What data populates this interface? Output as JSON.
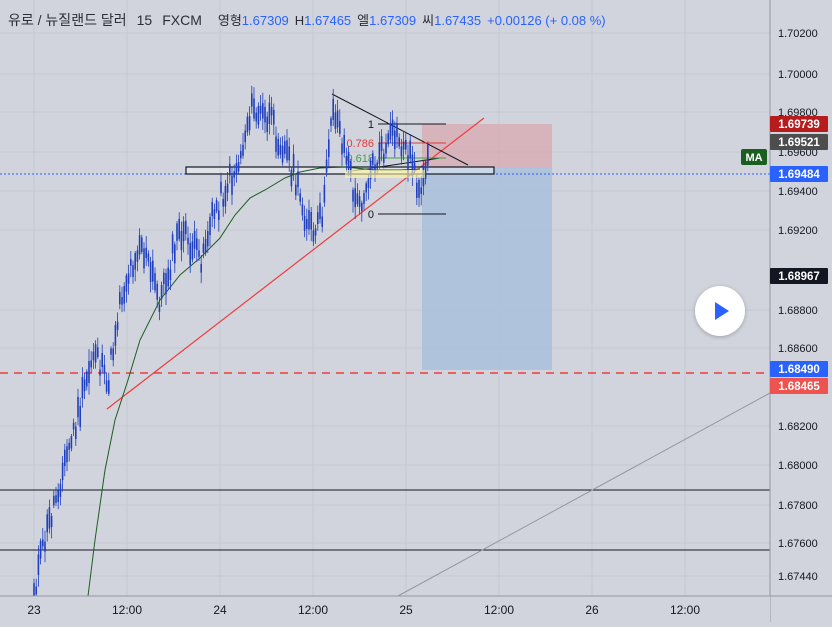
{
  "header": {
    "symbol": "유로 / 뉴질랜드 달러",
    "interval": "15",
    "exchange": "FXCM",
    "open_label": "영형",
    "open": "1.67309",
    "high_label": "H",
    "high": "1.67465",
    "low_label": "엘",
    "low": "1.67309",
    "close_label": "씨",
    "close": "1.67435",
    "change": "+0.00126 (+ 0.08 %)"
  },
  "ma_label": "MA",
  "chart_data": {
    "type": "candlestick",
    "x_ticks": [
      "23",
      "12:00",
      "24",
      "12:00",
      "25",
      "12:00",
      "26",
      "12:00"
    ],
    "y_ticks": [
      "1.70200",
      "1.70000",
      "1.69800",
      "1.69600",
      "1.69400",
      "1.69200",
      "1.68800",
      "1.68600",
      "1.68200",
      "1.68000",
      "1.67800",
      "1.67600",
      "1.67440"
    ],
    "price_labels": [
      {
        "value": "1.69739",
        "color": "#b71c1c"
      },
      {
        "value": "1.69521",
        "color": "#4d4d4d"
      },
      {
        "value": "1.69484",
        "color": "#2962ff"
      },
      {
        "value": "1.68967",
        "color": "#131722"
      },
      {
        "value": "1.68490",
        "color": "#2962ff"
      },
      {
        "value": "1.68465",
        "color": "#ef5350"
      }
    ],
    "fib_labels": [
      "1",
      "0.786",
      "0.618",
      "0"
    ],
    "series": [
      {
        "name": "MA",
        "color": "#1b5e20"
      }
    ],
    "candle_color": "#1f3fbf"
  }
}
